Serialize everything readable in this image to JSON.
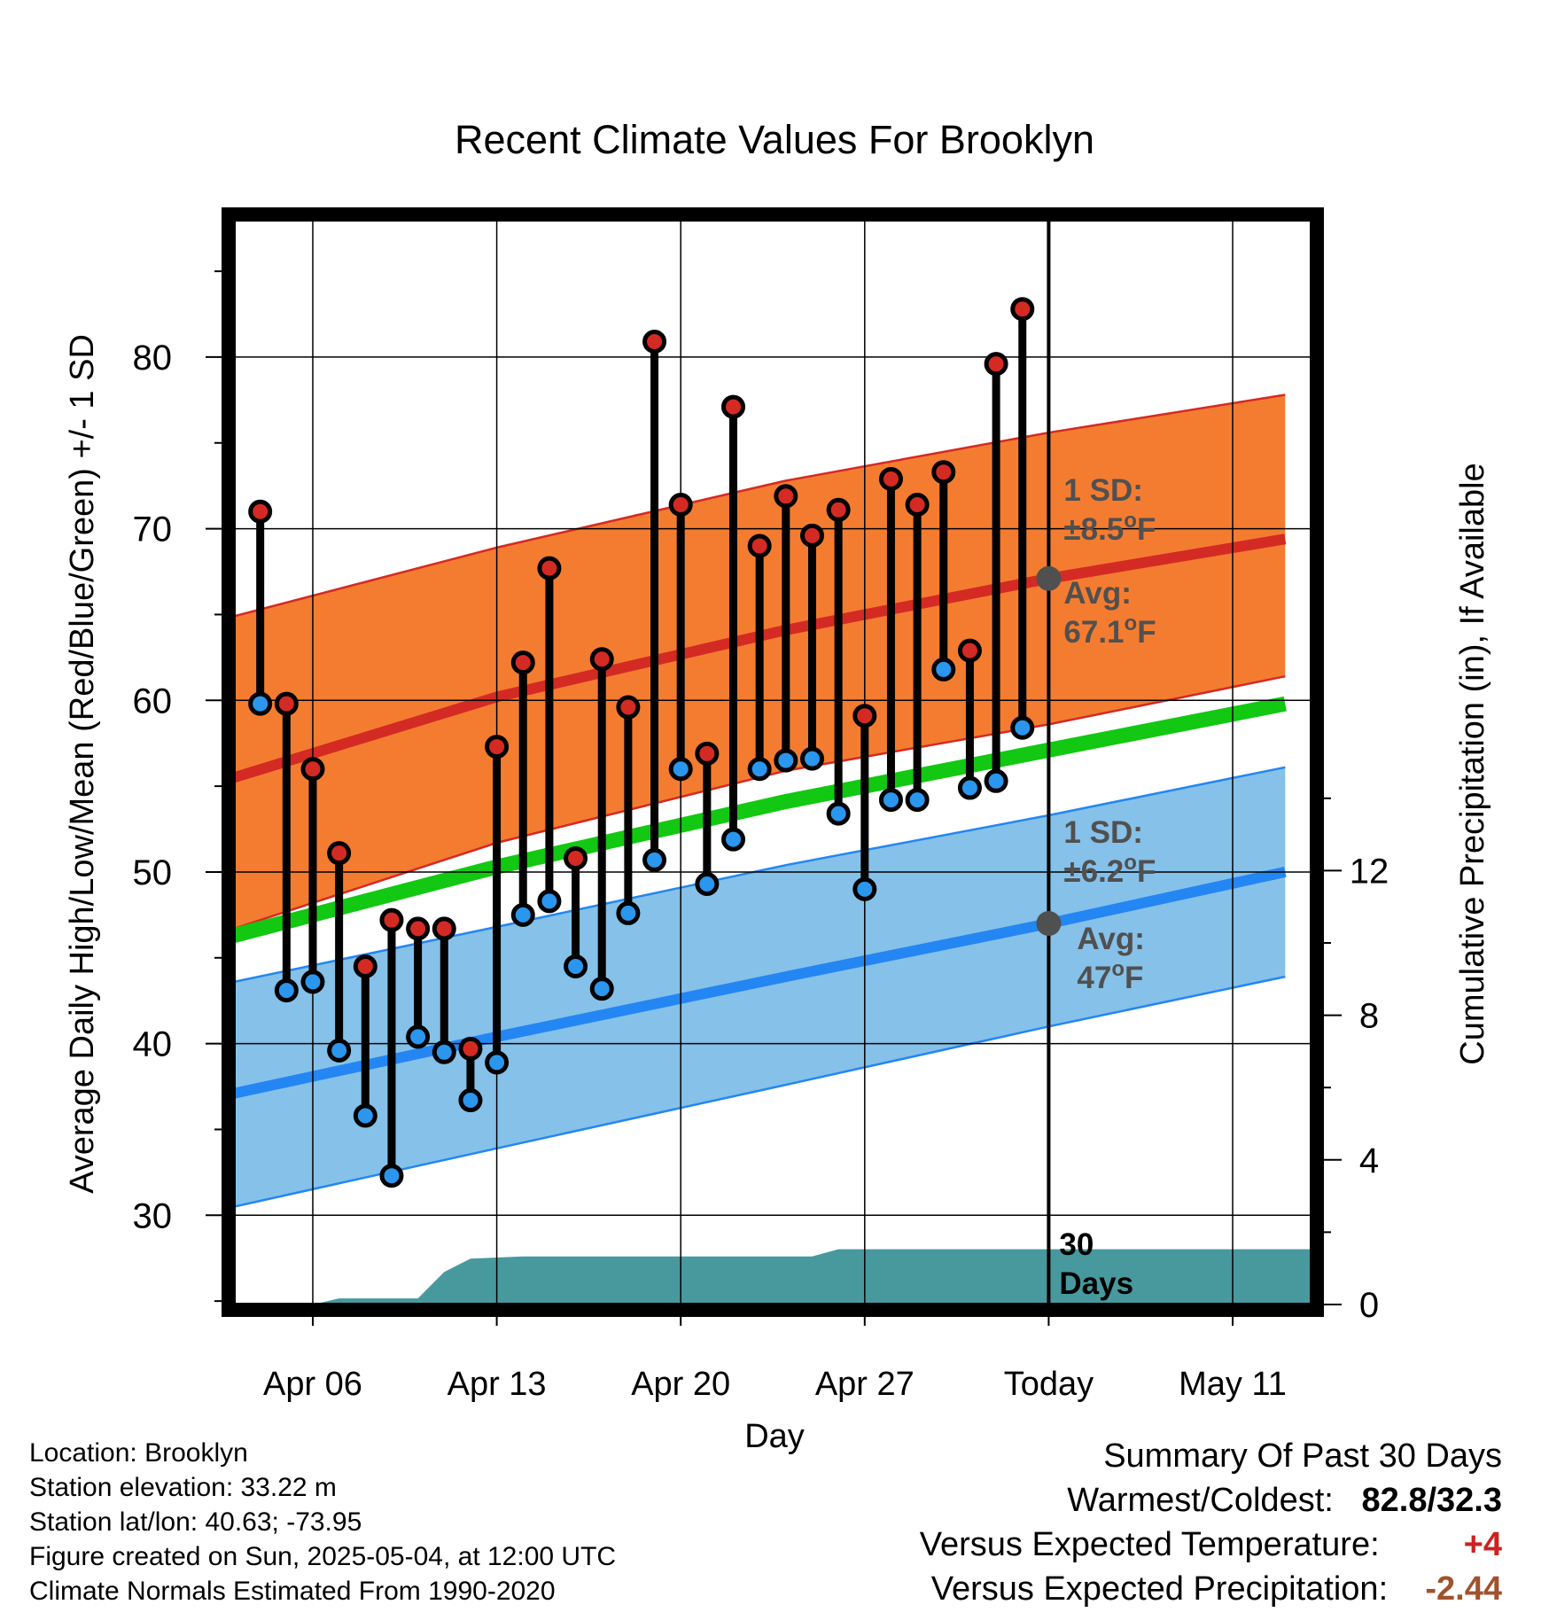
{
  "colors": {
    "high_band": "#f47c30",
    "high_band_edge": "#d42a24",
    "high_mean": "#d42a24",
    "low_band": "#85c1e9",
    "low_band_edge": "#2486f2",
    "low_mean": "#2486f2",
    "daily_mean": "#12c812",
    "precip": "#48999e",
    "high_dot": "#d42a24",
    "low_dot": "#2a96ee",
    "marker": "#505050",
    "anno_text": "#505050",
    "warm_value": "#cc2222",
    "precip_value": "#a0522d"
  },
  "chart_data": {
    "type": "line",
    "title": "Recent Climate Values For Brooklyn",
    "xlabel": "Day",
    "ylabel": "Average Daily High/Low/Mean (Red/Blue/Green) +/- 1 SD",
    "y2label": "Cumulative Precipitation (in), If Available",
    "xlim": [
      "2025-04-03",
      "2025-05-14"
    ],
    "ylim": [
      24.8,
      88
    ],
    "y2lim": [
      0,
      30
    ],
    "xticks": [
      {
        "date": "2025-04-06",
        "label": "Apr 06"
      },
      {
        "date": "2025-04-13",
        "label": "Apr 13"
      },
      {
        "date": "2025-04-20",
        "label": "Apr 20"
      },
      {
        "date": "2025-04-27",
        "label": "Apr 27"
      },
      {
        "date": "2025-05-04",
        "label": "Today"
      },
      {
        "date": "2025-05-11",
        "label": "May 11"
      }
    ],
    "yticks": [
      30,
      40,
      50,
      60,
      70,
      80
    ],
    "y2ticks": [
      0,
      4,
      8,
      12
    ],
    "grid": true,
    "normal_high": {
      "dates": [
        "2025-04-03",
        "2025-04-13",
        "2025-04-24",
        "2025-05-04",
        "2025-05-13"
      ],
      "mean": [
        55.5,
        60.2,
        64.1,
        67.1,
        69.4
      ],
      "upper": [
        64.9,
        68.9,
        72.8,
        75.6,
        77.8
      ],
      "lower": [
        46.7,
        51.7,
        55.9,
        58.6,
        61.4
      ]
    },
    "normal_low": {
      "dates": [
        "2025-04-03",
        "2025-04-13",
        "2025-04-24",
        "2025-05-04",
        "2025-05-13"
      ],
      "mean": [
        37.1,
        40.4,
        43.9,
        47.0,
        50.0
      ],
      "upper": [
        43.6,
        46.8,
        50.4,
        53.3,
        56.1
      ],
      "lower": [
        30.5,
        33.9,
        37.6,
        41.0,
        43.9
      ]
    },
    "normal_mean": {
      "dates": [
        "2025-04-03",
        "2025-04-13",
        "2025-04-24",
        "2025-05-04",
        "2025-05-13"
      ],
      "values": [
        46.3,
        50.3,
        54.1,
        57.1,
        59.8
      ]
    },
    "observed": {
      "dates": [
        "2025-04-04",
        "2025-04-05",
        "2025-04-06",
        "2025-04-07",
        "2025-04-08",
        "2025-04-09",
        "2025-04-10",
        "2025-04-11",
        "2025-04-12",
        "2025-04-13",
        "2025-04-14",
        "2025-04-15",
        "2025-04-16",
        "2025-04-17",
        "2025-04-18",
        "2025-04-19",
        "2025-04-20",
        "2025-04-21",
        "2025-04-22",
        "2025-04-23",
        "2025-04-24",
        "2025-04-25",
        "2025-04-26",
        "2025-04-27",
        "2025-04-28",
        "2025-04-29",
        "2025-04-30",
        "2025-05-01",
        "2025-05-02",
        "2025-05-03"
      ],
      "high": [
        71.0,
        59.8,
        56.0,
        51.1,
        44.5,
        47.2,
        46.7,
        46.7,
        39.7,
        57.3,
        62.2,
        67.7,
        50.8,
        62.4,
        59.6,
        80.9,
        71.4,
        56.9,
        77.1,
        69.0,
        71.9,
        69.6,
        71.1,
        59.1,
        72.9,
        71.4,
        73.3,
        62.9,
        79.6,
        82.8
      ],
      "low": [
        59.8,
        43.1,
        43.6,
        39.6,
        35.8,
        32.3,
        40.4,
        39.5,
        36.7,
        38.9,
        47.5,
        48.3,
        44.5,
        43.2,
        47.6,
        50.7,
        56.0,
        49.3,
        51.9,
        56.0,
        56.5,
        56.6,
        53.4,
        49.0,
        54.2,
        54.2,
        61.8,
        54.9,
        55.3,
        58.4
      ]
    },
    "precip_cumulative": {
      "dates": [
        "2025-04-03",
        "2025-04-06",
        "2025-04-07",
        "2025-04-10",
        "2025-04-11",
        "2025-04-12",
        "2025-04-14",
        "2025-04-25",
        "2025-04-26",
        "2025-05-14"
      ],
      "values": [
        0,
        0,
        0.17,
        0.17,
        0.9,
        1.27,
        1.33,
        1.33,
        1.53,
        1.53
      ]
    },
    "annotations": {
      "high_sd": {
        "line1": "1 SD:",
        "line2": "±8.5",
        "unit": "F"
      },
      "high_avg": {
        "line1": "Avg:",
        "line2": "67.1",
        "unit": "F"
      },
      "low_sd": {
        "line1": "1 SD:",
        "line2": "±6.2",
        "unit": "F"
      },
      "low_avg": {
        "line1": "Avg:",
        "line2": "47",
        "unit": "F"
      },
      "days_line1": "30",
      "days_line2": "Days",
      "today_date": "2025-05-04",
      "today_high_avg": 67.1,
      "today_low_avg": 47.0
    }
  },
  "footer": {
    "location": "Location: Brooklyn",
    "elevation": "Station elevation: 33.22 m",
    "latlon": "Station lat/lon: 40.63; -73.95",
    "created": "Figure created on Sun, 2025-05-04, at 12:00 UTC",
    "normals": "Climate Normals Estimated From 1990-2020"
  },
  "summary": {
    "heading": "Summary Of Past 30 Days",
    "warm_cold_label": "Warmest/Coldest:",
    "warm_cold_value": "82.8/32.3",
    "temp_label": "Versus Expected Temperature:",
    "temp_value": "+4",
    "precip_label": "Versus Expected Precipitation:",
    "precip_value": "-2.44"
  }
}
